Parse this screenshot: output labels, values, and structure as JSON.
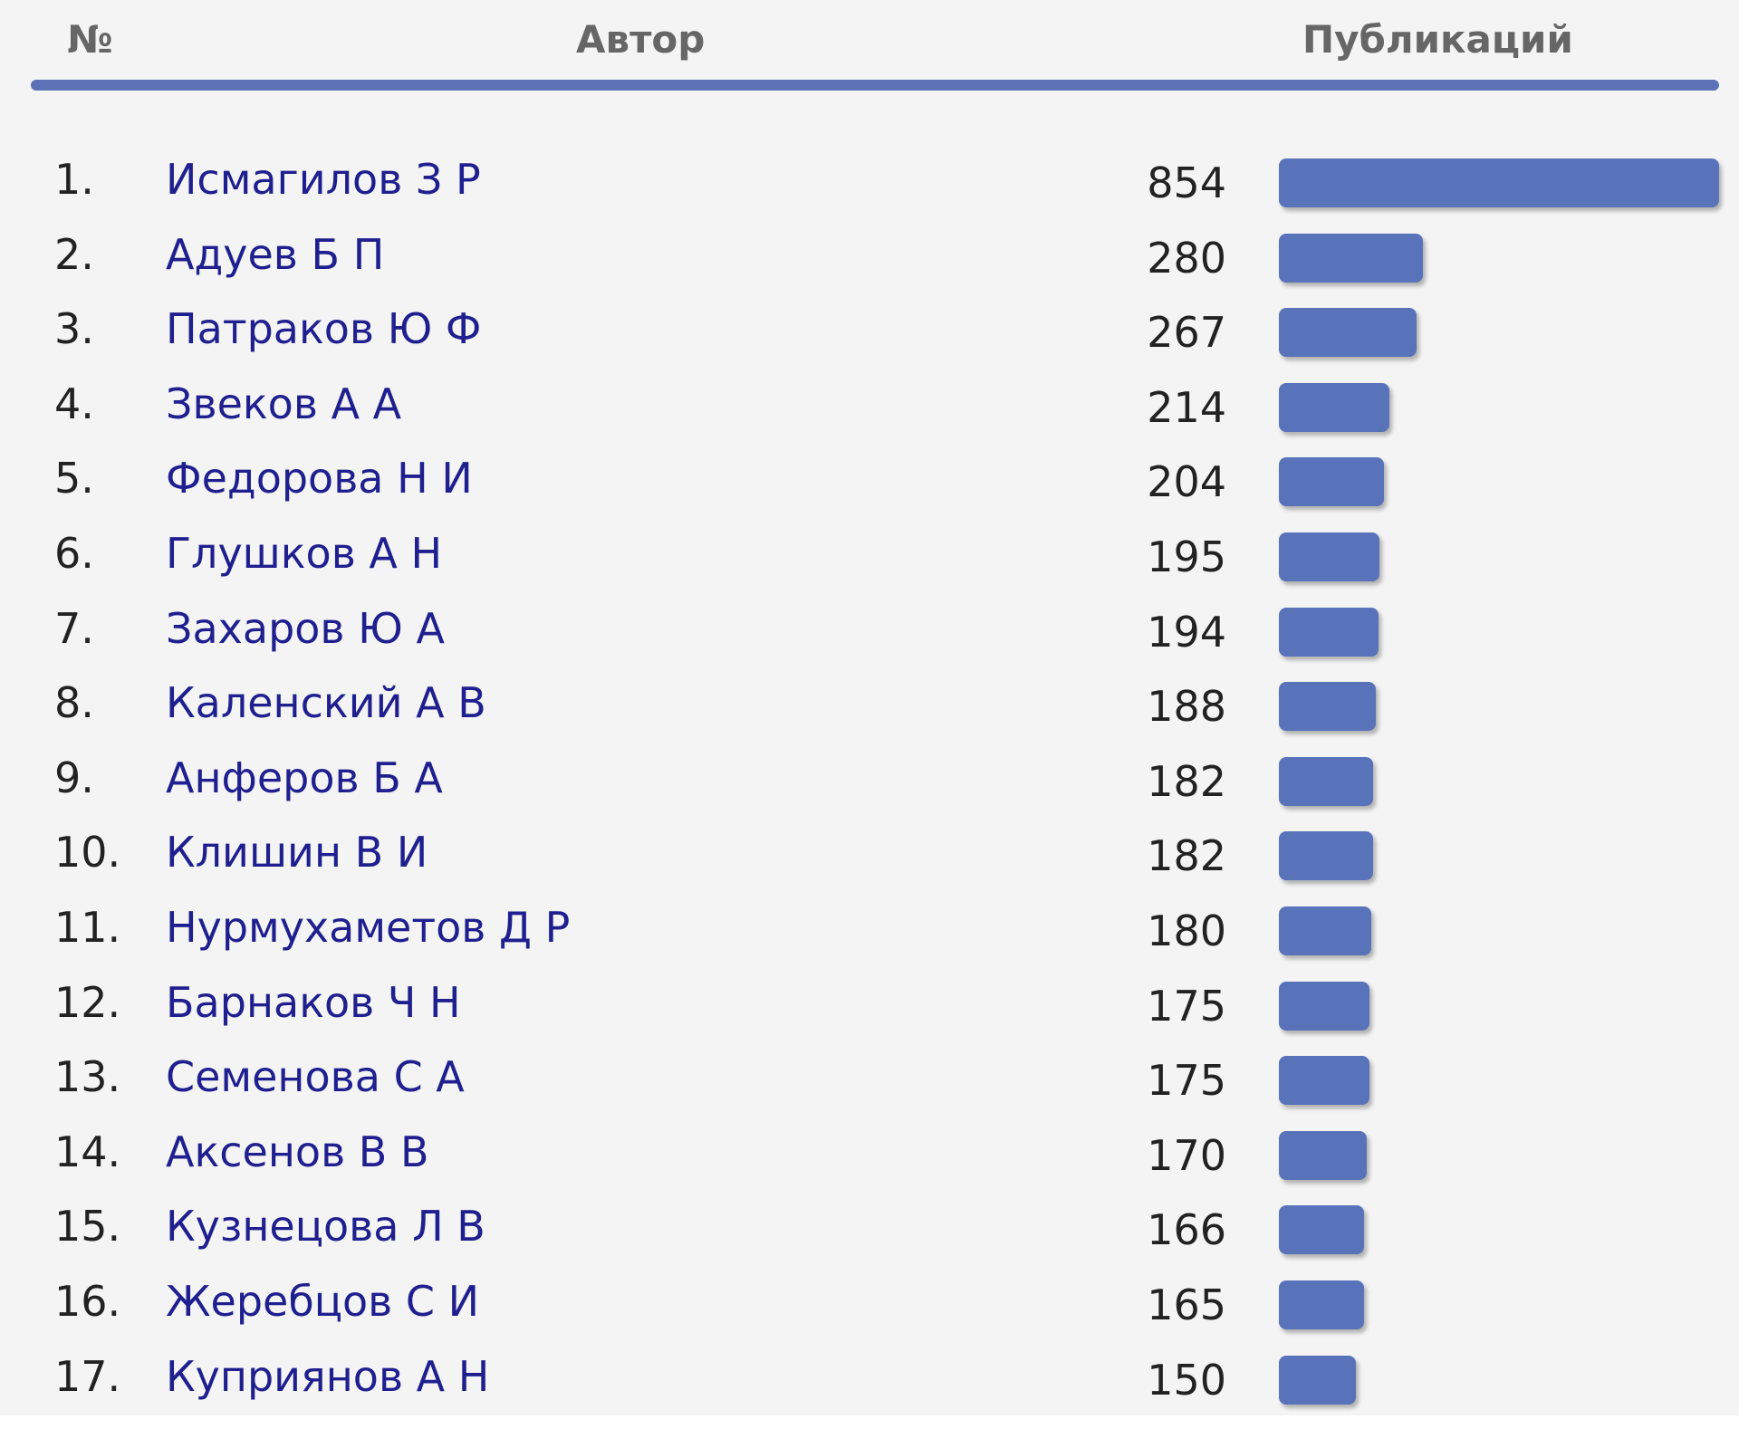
{
  "table": {
    "headers": {
      "number": "№",
      "author": "Автор",
      "publications": "Публикаций"
    },
    "accent_color": "#5873ba",
    "max_value": 854,
    "rows": [
      {
        "rank": "1.",
        "author": "Исмагилов З Р",
        "count": 854
      },
      {
        "rank": "2.",
        "author": "Адуев Б П",
        "count": 280
      },
      {
        "rank": "3.",
        "author": "Патраков Ю Ф",
        "count": 267
      },
      {
        "rank": "4.",
        "author": "Звеков А А",
        "count": 214
      },
      {
        "rank": "5.",
        "author": "Федорова Н И",
        "count": 204
      },
      {
        "rank": "6.",
        "author": "Глушков А Н",
        "count": 195
      },
      {
        "rank": "7.",
        "author": "Захаров Ю А",
        "count": 194
      },
      {
        "rank": "8.",
        "author": "Каленский А В",
        "count": 188
      },
      {
        "rank": "9.",
        "author": "Анферов Б А",
        "count": 182
      },
      {
        "rank": "10.",
        "author": "Клишин В И",
        "count": 182
      },
      {
        "rank": "11.",
        "author": "Нурмухаметов Д Р",
        "count": 180
      },
      {
        "rank": "12.",
        "author": "Барнаков Ч Н",
        "count": 175
      },
      {
        "rank": "13.",
        "author": "Семенова С А",
        "count": 175
      },
      {
        "rank": "14.",
        "author": "Аксенов В В",
        "count": 170
      },
      {
        "rank": "15.",
        "author": "Кузнецова Л В",
        "count": 166
      },
      {
        "rank": "16.",
        "author": "Жеребцов С И",
        "count": 165
      },
      {
        "rank": "17.",
        "author": "Куприянов А Н",
        "count": 150
      }
    ]
  }
}
